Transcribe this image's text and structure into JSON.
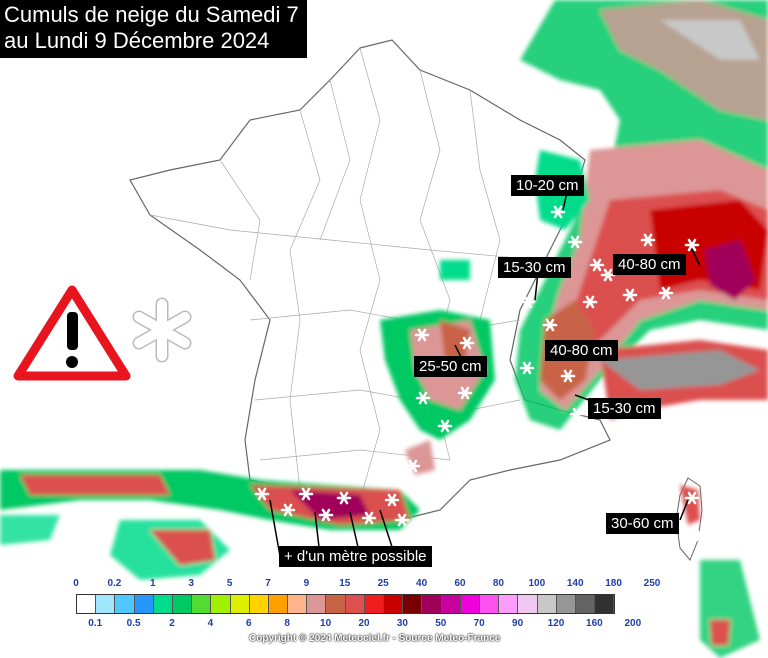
{
  "title": {
    "line1": "Cumuls de neige du Samedi 7",
    "line2": "au Lundi 9 Décembre 2024"
  },
  "annotations": {
    "jura_north": "10-20 cm",
    "jura_south": "15-30 cm",
    "alps_north": "40-80 cm",
    "alps_central": "40-80 cm",
    "massif_central": "25-50 cm",
    "alps_south": "15-30 cm",
    "corsica": "30-60 cm",
    "pyrenees": "+ d'un mètre possible"
  },
  "icons": {
    "warning": "warning-triangle-icon",
    "snow": "snowflake-icon"
  },
  "legend": {
    "top_labels": [
      "0",
      "0.2",
      "1",
      "3",
      "5",
      "7",
      "9",
      "15",
      "25",
      "40",
      "60",
      "80",
      "100",
      "140",
      "180",
      "250"
    ],
    "bottom_labels": [
      "0.1",
      "0.5",
      "2",
      "4",
      "6",
      "8",
      "10",
      "20",
      "30",
      "50",
      "70",
      "90",
      "120",
      "160",
      "200"
    ],
    "colors": [
      "#ffffff",
      "#a0e6ff",
      "#50c8ff",
      "#2896ff",
      "#00dc8c",
      "#00c864",
      "#50dc32",
      "#a0f000",
      "#dcf000",
      "#ffd200",
      "#ffa000",
      "#ffb48c",
      "#dc9696",
      "#c86446",
      "#dc5050",
      "#f01e1e",
      "#c80000",
      "#780000",
      "#a0005a",
      "#c800a0",
      "#f000dc",
      "#ff50f0",
      "#ff9cff",
      "#f0c8f0",
      "#c8c8c8",
      "#969696",
      "#646464",
      "#323232"
    ]
  },
  "copyright": "Copyright © 2024 Meteociel.fr - Source Meteo-France"
}
